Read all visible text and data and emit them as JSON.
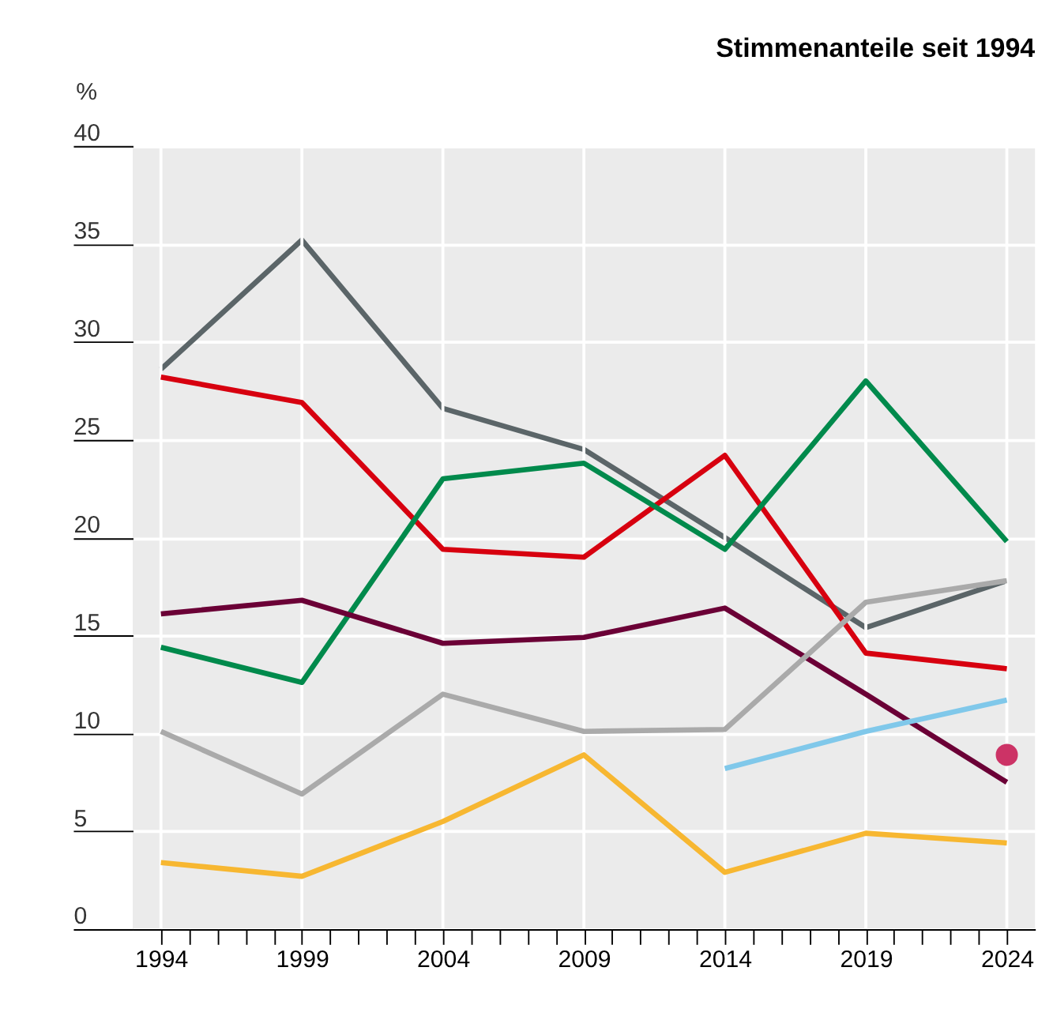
{
  "chart_data": {
    "type": "line",
    "title": "Stimmenanteile seit 1994",
    "ylabel": "%",
    "x": [
      1994,
      1999,
      2004,
      2009,
      2014,
      2019,
      2024
    ],
    "series": [
      {
        "color": "#5b6568",
        "values": [
          28.6,
          35.2,
          26.6,
          24.5,
          20.0,
          15.4,
          17.8
        ]
      },
      {
        "color": "#d7000f",
        "values": [
          28.2,
          26.9,
          19.4,
          19.0,
          24.2,
          14.1,
          13.3
        ]
      },
      {
        "color": "#008a4c",
        "values": [
          14.4,
          12.6,
          23.0,
          23.8,
          19.4,
          28.0,
          19.8
        ]
      },
      {
        "color": "#6b0036",
        "values": [
          16.1,
          16.8,
          14.6,
          14.9,
          16.4,
          12.0,
          7.5
        ]
      },
      {
        "color": "#aaaaaa",
        "values": [
          10.1,
          6.9,
          12.0,
          10.1,
          10.2,
          16.7,
          17.8
        ]
      },
      {
        "color": "#f7b731",
        "values": [
          3.4,
          2.7,
          5.5,
          8.9,
          2.9,
          4.9,
          4.4
        ]
      },
      {
        "color": "#80c8ea",
        "x": [
          2014,
          2019,
          2024
        ],
        "values": [
          8.2,
          10.1,
          11.7
        ]
      },
      {
        "type": "scatter",
        "color": "#cc3366",
        "x": [
          2024
        ],
        "values": [
          8.9
        ]
      }
    ],
    "xlim": [
      1993,
      2025
    ],
    "xticks": [
      1994,
      {
        "value": 1995,
        "label": null
      },
      {
        "value": 1996,
        "label": null
      },
      {
        "value": 1997,
        "label": null
      },
      {
        "value": 1998,
        "label": null
      },
      1999,
      {
        "value": 2000,
        "label": null
      },
      {
        "value": 2001,
        "label": null
      },
      {
        "value": 2002,
        "label": null
      },
      {
        "value": 2003,
        "label": null
      },
      2004,
      {
        "value": 2005,
        "label": null
      },
      {
        "value": 2006,
        "label": null
      },
      {
        "value": 2007,
        "label": null
      },
      {
        "value": 2008,
        "label": null
      },
      2009,
      {
        "value": 2010,
        "label": null
      },
      {
        "value": 2011,
        "label": null
      },
      {
        "value": 2012,
        "label": null
      },
      {
        "value": 2013,
        "label": null
      },
      2014,
      {
        "value": 2015,
        "label": null
      },
      {
        "value": 2016,
        "label": null
      },
      {
        "value": 2017,
        "label": null
      },
      {
        "value": 2018,
        "label": null
      },
      2019,
      {
        "value": 2020,
        "label": null
      },
      {
        "value": 2021,
        "label": null
      },
      {
        "value": 2022,
        "label": null
      },
      {
        "value": 2023,
        "label": null
      },
      2024
    ],
    "ylim": [
      0,
      40
    ],
    "yticks": [
      0,
      5,
      10,
      15,
      20,
      25,
      30,
      35,
      40
    ],
    "grid": true,
    "line_style": "solid"
  }
}
